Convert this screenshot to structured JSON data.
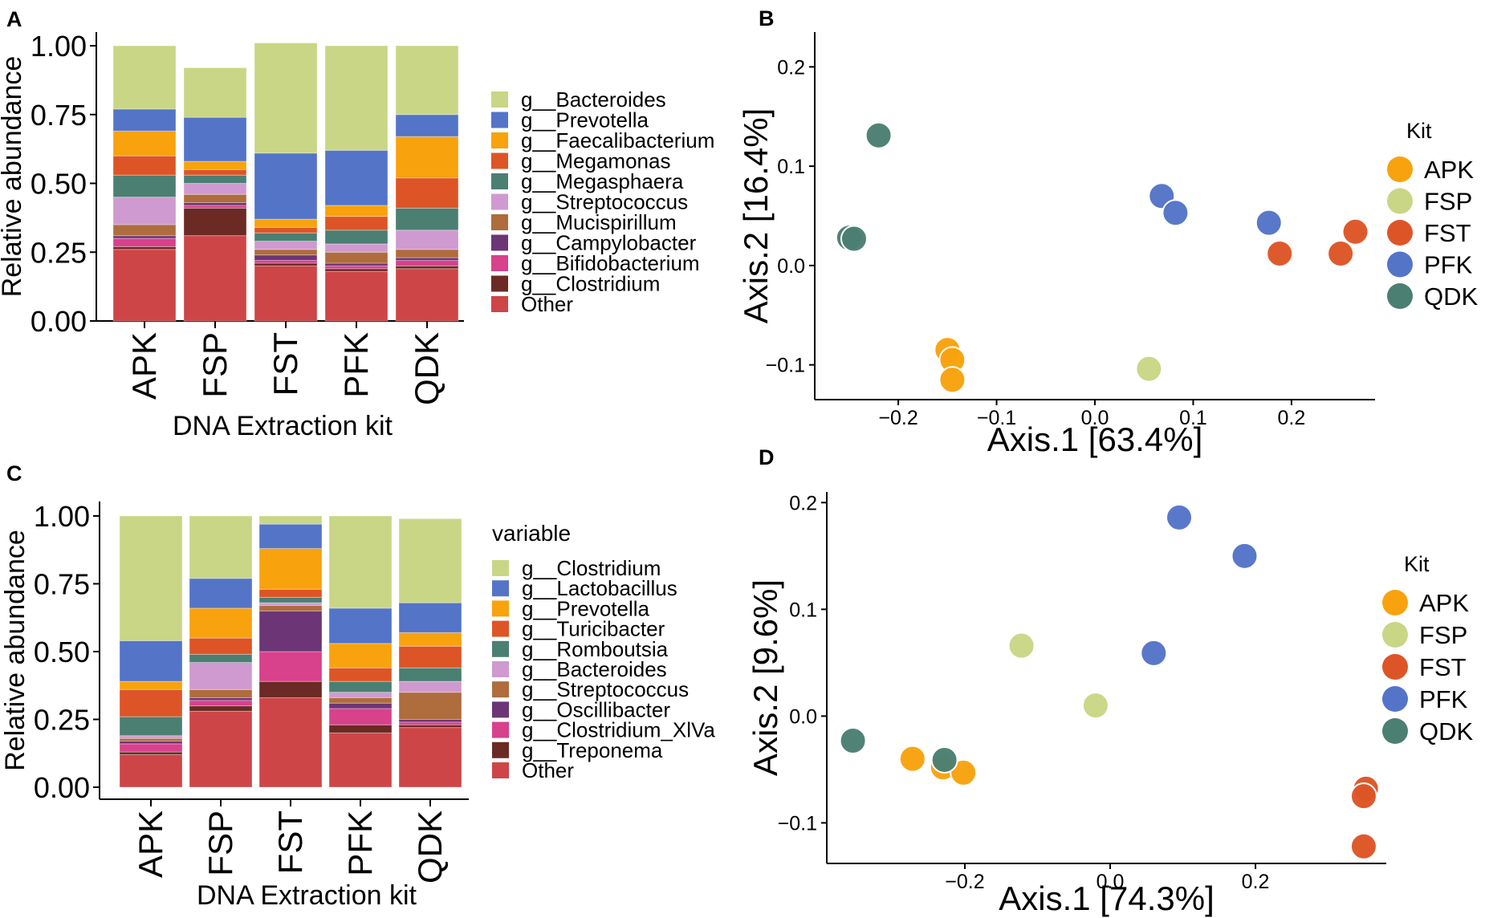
{
  "chart_data": [
    {
      "id": "A",
      "type": "bar",
      "subtype": "stacked",
      "panel_label": "A",
      "xlabel": "DNA Extraction kit",
      "ylabel": "Relative abundance",
      "ylim": [
        0,
        1
      ],
      "yticks": [
        "0.00",
        "0.25",
        "0.50",
        "0.75",
        "1.00"
      ],
      "categories": [
        "APK",
        "FSP",
        "FST",
        "PFK",
        "QDK"
      ],
      "legend_title": "",
      "series": [
        {
          "name": "Other",
          "legend": "Other",
          "color": "#CE4547",
          "values": [
            0.26,
            0.31,
            0.2,
            0.18,
            0.19
          ]
        },
        {
          "name": "g__Clostridium",
          "legend": "g__Clostridium",
          "color": "#6B2A24",
          "values": [
            0.01,
            0.1,
            0.01,
            0.01,
            0.01
          ]
        },
        {
          "name": "g__Bifidobacterium",
          "legend": "g__Bifidobacterium",
          "color": "#D8418B",
          "values": [
            0.03,
            0.01,
            0.01,
            0.01,
            0.02
          ]
        },
        {
          "name": "g__Campylobacter",
          "legend": "g__Campylobacter",
          "color": "#6C3676",
          "values": [
            0.01,
            0.01,
            0.02,
            0.01,
            0.01
          ]
        },
        {
          "name": "g__Mucispirillum",
          "legend": "g__Mucispirillum",
          "color": "#AF6C3D",
          "values": [
            0.04,
            0.03,
            0.02,
            0.04,
            0.03
          ]
        },
        {
          "name": "g__Streptococcus",
          "legend": "g__Streptococcus",
          "color": "#CF9ACF",
          "values": [
            0.1,
            0.04,
            0.03,
            0.03,
            0.07
          ]
        },
        {
          "name": "g__Megasphaera",
          "legend": "g__Megasphaera",
          "color": "#4A7F72",
          "values": [
            0.08,
            0.03,
            0.03,
            0.05,
            0.08
          ]
        },
        {
          "name": "g__Megamonas",
          "legend": "g__Megamonas",
          "color": "#DD5526",
          "values": [
            0.07,
            0.02,
            0.02,
            0.05,
            0.11
          ]
        },
        {
          "name": "g__Faecalibacterium",
          "legend": "g__Faecalibacterium",
          "color": "#F8A20D",
          "values": [
            0.09,
            0.03,
            0.03,
            0.04,
            0.15
          ]
        },
        {
          "name": "g__Prevotella",
          "legend": "g__Prevotella",
          "color": "#5474C8",
          "values": [
            0.08,
            0.16,
            0.24,
            0.2,
            0.08
          ]
        },
        {
          "name": "g__Bacteroides",
          "legend": "g__Bacteroides",
          "color": "#C9D685",
          "values": [
            0.23,
            0.18,
            0.4,
            0.38,
            0.25
          ]
        }
      ]
    },
    {
      "id": "B",
      "type": "scatter",
      "panel_label": "B",
      "xlabel": "Axis.1   [63.4%]",
      "ylabel": "Axis.2   [16.4%]",
      "xlim": [
        -0.285,
        0.285
      ],
      "ylim": [
        -0.135,
        0.235
      ],
      "xticks": [
        "−0.2",
        "−0.1",
        "0.0",
        "0.1",
        "0.2"
      ],
      "xtick_values": [
        -0.2,
        -0.1,
        0.0,
        0.1,
        0.2
      ],
      "yticks": [
        "−0.1",
        "0.0",
        "0.1",
        "0.2"
      ],
      "ytick_values": [
        -0.1,
        0.0,
        0.1,
        0.2
      ],
      "legend_title": "Kit",
      "legend": [
        {
          "name": "APK",
          "color": "#F8A20D"
        },
        {
          "name": "FSP",
          "color": "#C9D685"
        },
        {
          "name": "FST",
          "color": "#DD5526"
        },
        {
          "name": "PFK",
          "color": "#5474C8"
        },
        {
          "name": "QDK",
          "color": "#4A7F72"
        }
      ],
      "series": [
        {
          "name": "APK",
          "color": "#F8A20D",
          "points": [
            [
              -0.15,
              -0.085
            ],
            [
              -0.145,
              -0.095
            ],
            [
              -0.145,
              -0.115
            ]
          ]
        },
        {
          "name": "FSP",
          "color": "#C9D685",
          "points": [
            [
              0.055,
              -0.104
            ]
          ]
        },
        {
          "name": "FST",
          "color": "#DD5526",
          "points": [
            [
              0.265,
              0.034
            ],
            [
              0.188,
              0.012
            ],
            [
              0.25,
              0.012
            ]
          ]
        },
        {
          "name": "PFK",
          "color": "#5474C8",
          "points": [
            [
              0.068,
              0.07
            ],
            [
              0.082,
              0.053
            ],
            [
              0.177,
              0.043
            ]
          ]
        },
        {
          "name": "QDK",
          "color": "#4A7F72",
          "points": [
            [
              -0.22,
              0.131
            ],
            [
              -0.25,
              0.028
            ],
            [
              -0.245,
              0.027
            ]
          ]
        }
      ]
    },
    {
      "id": "C",
      "type": "bar",
      "subtype": "stacked",
      "panel_label": "C",
      "xlabel": "DNA Extraction kit",
      "ylabel": "Relative abundance",
      "ylim": [
        0,
        1
      ],
      "yticks": [
        "0.00",
        "0.25",
        "0.50",
        "0.75",
        "1.00"
      ],
      "categories": [
        "APK",
        "FSP",
        "FST",
        "PFK",
        "QDK"
      ],
      "legend_title": "variable",
      "series": [
        {
          "name": "Other",
          "legend": "Other",
          "color": "#CE4547",
          "values": [
            0.12,
            0.28,
            0.33,
            0.2,
            0.22
          ]
        },
        {
          "name": "g__Treponema",
          "legend": "g__Treponema",
          "color": "#6B2A24",
          "values": [
            0.01,
            0.02,
            0.06,
            0.03,
            0.01
          ]
        },
        {
          "name": "g__Clostridium_XlVa",
          "legend": "g__Clostridium_XlVa",
          "color": "#D8418B",
          "values": [
            0.03,
            0.02,
            0.11,
            0.06,
            0.01
          ]
        },
        {
          "name": "g__Oscillibacter",
          "legend": "g__Oscillibacter",
          "color": "#6C3676",
          "values": [
            0.01,
            0.01,
            0.15,
            0.02,
            0.01
          ]
        },
        {
          "name": "g__Streptococcus",
          "legend": "g__Streptococcus",
          "color": "#AF6C3D",
          "values": [
            0.01,
            0.03,
            0.02,
            0.02,
            0.1
          ]
        },
        {
          "name": "g__Bacteroides",
          "legend": "g__Bacteroides",
          "color": "#CF9ACF",
          "values": [
            0.01,
            0.1,
            0.01,
            0.02,
            0.04
          ]
        },
        {
          "name": "g__Romboutsia",
          "legend": "g__Romboutsia",
          "color": "#4A7F72",
          "values": [
            0.07,
            0.03,
            0.02,
            0.04,
            0.05
          ]
        },
        {
          "name": "g__Turicibacter",
          "legend": "g__Turicibacter",
          "color": "#DD5526",
          "values": [
            0.1,
            0.06,
            0.03,
            0.05,
            0.08
          ]
        },
        {
          "name": "g__Prevotella",
          "legend": "g__Prevotella",
          "color": "#F8A20D",
          "values": [
            0.03,
            0.11,
            0.15,
            0.09,
            0.05
          ]
        },
        {
          "name": "g__Lactobacillus",
          "legend": "g__Lactobacillus",
          "color": "#5474C8",
          "values": [
            0.15,
            0.11,
            0.09,
            0.13,
            0.11
          ]
        },
        {
          "name": "g__Clostridium",
          "legend": "g__Clostridium",
          "color": "#C9D685",
          "values": [
            0.46,
            0.23,
            0.03,
            0.34,
            0.31
          ]
        }
      ]
    },
    {
      "id": "D",
      "type": "scatter",
      "panel_label": "D",
      "xlabel": "Axis.1   [74.3%]",
      "ylabel": "Axis.2   [9.6%]",
      "xlim": [
        -0.39,
        0.38
      ],
      "ylim": [
        -0.138,
        0.21
      ],
      "xticks": [
        "−0.2",
        "0.0",
        "0.2"
      ],
      "xtick_values": [
        -0.2,
        0.0,
        0.2
      ],
      "yticks": [
        "−0.1",
        "0.0",
        "0.1",
        "0.2"
      ],
      "ytick_values": [
        -0.1,
        0.0,
        0.1,
        0.2
      ],
      "legend_title": "Kit",
      "legend": [
        {
          "name": "APK",
          "color": "#F8A20D"
        },
        {
          "name": "FSP",
          "color": "#C9D685"
        },
        {
          "name": "FST",
          "color": "#DD5526"
        },
        {
          "name": "PFK",
          "color": "#5474C8"
        },
        {
          "name": "QDK",
          "color": "#4A7F72"
        }
      ],
      "series": [
        {
          "name": "APK",
          "color": "#F8A20D",
          "points": [
            [
              -0.272,
              -0.04
            ],
            [
              -0.23,
              -0.048
            ],
            [
              -0.202,
              -0.053
            ]
          ]
        },
        {
          "name": "FSP",
          "color": "#C9D685",
          "points": [
            [
              -0.122,
              0.066
            ],
            [
              -0.02,
              0.01
            ]
          ]
        },
        {
          "name": "FST",
          "color": "#DD5526",
          "points": [
            [
              0.352,
              -0.068
            ],
            [
              0.349,
              -0.075
            ],
            [
              0.349,
              -0.122
            ]
          ]
        },
        {
          "name": "PFK",
          "color": "#5474C8",
          "points": [
            [
              0.095,
              0.186
            ],
            [
              0.185,
              0.15
            ],
            [
              0.06,
              0.059
            ]
          ]
        },
        {
          "name": "QDK",
          "color": "#4A7F72",
          "points": [
            [
              -0.354,
              -0.023
            ],
            [
              -0.228,
              -0.041
            ]
          ]
        }
      ]
    }
  ]
}
